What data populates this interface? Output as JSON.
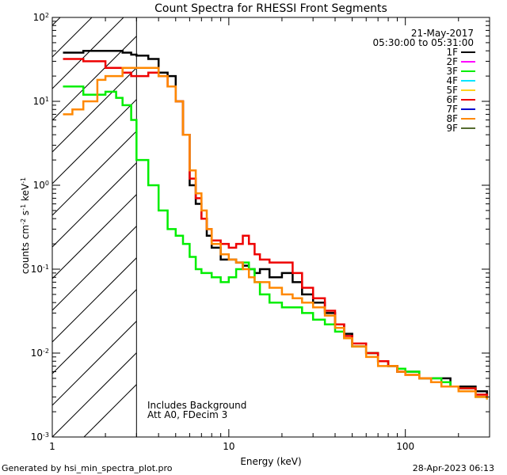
{
  "chart_data": {
    "type": "line",
    "title": "Count Spectra for RHESSI Front Segments",
    "xlabel": "Energy (keV)",
    "ylabel_parts": [
      "counts cm",
      "-2",
      " s",
      "-1",
      " keV",
      "-1"
    ],
    "xscale": "log",
    "yscale": "log",
    "xlim": [
      1,
      300
    ],
    "ylim": [
      0.001,
      100
    ],
    "x_ticks": [
      {
        "value": 1,
        "label": "1"
      },
      {
        "value": 10,
        "label": "10"
      },
      {
        "value": 100,
        "label": "100"
      }
    ],
    "y_ticks": [
      {
        "value": 0.001,
        "base": "10",
        "exp": "-3"
      },
      {
        "value": 0.01,
        "base": "10",
        "exp": "-2"
      },
      {
        "value": 0.1,
        "base": "10",
        "exp": "-1"
      },
      {
        "value": 1,
        "base": "10",
        "exp": "0"
      },
      {
        "value": 10,
        "base": "10",
        "exp": "1"
      },
      {
        "value": 100,
        "base": "10",
        "exp": "2"
      }
    ],
    "date": "21-May-2017",
    "time_range": "05:30:00 to 05:31:00",
    "energy_cutoff": 3,
    "annotations": [
      "Includes Background",
      "Att A0, FDecim 3"
    ],
    "legend": [
      {
        "label": "1F",
        "color": "#000000"
      },
      {
        "label": "2F",
        "color": "#ff00ff"
      },
      {
        "label": "3F",
        "color": "#00ee00"
      },
      {
        "label": "4F",
        "color": "#00e5ff"
      },
      {
        "label": "5F",
        "color": "#ffd21a"
      },
      {
        "label": "6F",
        "color": "#ee0000"
      },
      {
        "label": "7F",
        "color": "#0000cc"
      },
      {
        "label": "8F",
        "color": "#ff8800"
      },
      {
        "label": "9F",
        "color": "#556b2f"
      }
    ],
    "series": [
      {
        "name": "1F",
        "color": "#000000",
        "points": [
          [
            1.15,
            38
          ],
          [
            1.5,
            40
          ],
          [
            2.0,
            40
          ],
          [
            2.5,
            38
          ],
          [
            2.8,
            36
          ],
          [
            3.0,
            35
          ],
          [
            3.5,
            32
          ],
          [
            4.0,
            22
          ],
          [
            4.5,
            20
          ],
          [
            5.0,
            10
          ],
          [
            5.5,
            4
          ],
          [
            6.0,
            1.0
          ],
          [
            6.5,
            0.6
          ],
          [
            7.0,
            0.4
          ],
          [
            7.5,
            0.25
          ],
          [
            8.0,
            0.18
          ],
          [
            9.0,
            0.13
          ],
          [
            10,
            0.13
          ],
          [
            11,
            0.12
          ],
          [
            12,
            0.11
          ],
          [
            13,
            0.1
          ],
          [
            14,
            0.09
          ],
          [
            15,
            0.1
          ],
          [
            17,
            0.08
          ],
          [
            20,
            0.09
          ],
          [
            23,
            0.07
          ],
          [
            26,
            0.05
          ],
          [
            30,
            0.04
          ],
          [
            35,
            0.03
          ],
          [
            40,
            0.022
          ],
          [
            45,
            0.017
          ],
          [
            50,
            0.012
          ],
          [
            60,
            0.01
          ],
          [
            70,
            0.008
          ],
          [
            80,
            0.007
          ],
          [
            90,
            0.006
          ],
          [
            100,
            0.006
          ],
          [
            120,
            0.005
          ],
          [
            140,
            0.005
          ],
          [
            160,
            0.005
          ],
          [
            180,
            0.004
          ],
          [
            200,
            0.004
          ],
          [
            250,
            0.0035
          ],
          [
            290,
            0.003
          ]
        ]
      },
      {
        "name": "3F",
        "color": "#00ee00",
        "points": [
          [
            1.15,
            15
          ],
          [
            1.3,
            15
          ],
          [
            1.5,
            12
          ],
          [
            2.0,
            13
          ],
          [
            2.3,
            11
          ],
          [
            2.5,
            9
          ],
          [
            2.8,
            6
          ],
          [
            3.0,
            2.0
          ],
          [
            3.5,
            1.0
          ],
          [
            4.0,
            0.5
          ],
          [
            4.5,
            0.3
          ],
          [
            5.0,
            0.25
          ],
          [
            5.5,
            0.2
          ],
          [
            6.0,
            0.14
          ],
          [
            6.5,
            0.1
          ],
          [
            7.0,
            0.09
          ],
          [
            8.0,
            0.08
          ],
          [
            9.0,
            0.07
          ],
          [
            10,
            0.08
          ],
          [
            11,
            0.1
          ],
          [
            12,
            0.12
          ],
          [
            13,
            0.1
          ],
          [
            14,
            0.07
          ],
          [
            15,
            0.05
          ],
          [
            17,
            0.04
          ],
          [
            20,
            0.035
          ],
          [
            23,
            0.035
          ],
          [
            26,
            0.03
          ],
          [
            30,
            0.025
          ],
          [
            35,
            0.022
          ],
          [
            40,
            0.018
          ],
          [
            45,
            0.015
          ],
          [
            50,
            0.012
          ],
          [
            60,
            0.01
          ],
          [
            70,
            0.008
          ],
          [
            80,
            0.007
          ],
          [
            90,
            0.0065
          ],
          [
            100,
            0.006
          ],
          [
            120,
            0.005
          ],
          [
            140,
            0.005
          ],
          [
            160,
            0.0045
          ],
          [
            180,
            0.004
          ],
          [
            200,
            0.0038
          ],
          [
            250,
            0.003
          ],
          [
            290,
            0.0028
          ]
        ]
      },
      {
        "name": "6F",
        "color": "#ee0000",
        "points": [
          [
            1.15,
            32
          ],
          [
            1.5,
            30
          ],
          [
            2.0,
            25
          ],
          [
            2.5,
            22
          ],
          [
            2.8,
            20
          ],
          [
            3.0,
            20
          ],
          [
            3.5,
            22
          ],
          [
            4.0,
            20
          ],
          [
            4.5,
            15
          ],
          [
            5.0,
            10
          ],
          [
            5.5,
            4
          ],
          [
            6.0,
            1.2
          ],
          [
            6.5,
            0.7
          ],
          [
            7.0,
            0.4
          ],
          [
            7.5,
            0.3
          ],
          [
            8.0,
            0.22
          ],
          [
            9.0,
            0.2
          ],
          [
            10,
            0.18
          ],
          [
            11,
            0.2
          ],
          [
            12,
            0.25
          ],
          [
            13,
            0.2
          ],
          [
            14,
            0.15
          ],
          [
            15,
            0.13
          ],
          [
            17,
            0.12
          ],
          [
            20,
            0.12
          ],
          [
            23,
            0.09
          ],
          [
            26,
            0.06
          ],
          [
            30,
            0.045
          ],
          [
            35,
            0.032
          ],
          [
            40,
            0.022
          ],
          [
            45,
            0.016
          ],
          [
            50,
            0.013
          ],
          [
            60,
            0.01
          ],
          [
            70,
            0.008
          ],
          [
            80,
            0.007
          ],
          [
            90,
            0.006
          ],
          [
            100,
            0.0055
          ],
          [
            120,
            0.005
          ],
          [
            140,
            0.0045
          ],
          [
            160,
            0.004
          ],
          [
            180,
            0.004
          ],
          [
            200,
            0.0038
          ],
          [
            250,
            0.0032
          ],
          [
            290,
            0.003
          ]
        ]
      },
      {
        "name": "8F",
        "color": "#ff8800",
        "points": [
          [
            1.15,
            7
          ],
          [
            1.3,
            8
          ],
          [
            1.5,
            10
          ],
          [
            1.8,
            18
          ],
          [
            2.0,
            20
          ],
          [
            2.5,
            25
          ],
          [
            3.0,
            25
          ],
          [
            3.5,
            25
          ],
          [
            4.0,
            20
          ],
          [
            4.5,
            15
          ],
          [
            5.0,
            10
          ],
          [
            5.5,
            4
          ],
          [
            6.0,
            1.5
          ],
          [
            6.5,
            0.8
          ],
          [
            7.0,
            0.5
          ],
          [
            7.5,
            0.3
          ],
          [
            8.0,
            0.2
          ],
          [
            9.0,
            0.15
          ],
          [
            10,
            0.13
          ],
          [
            11,
            0.12
          ],
          [
            12,
            0.1
          ],
          [
            13,
            0.08
          ],
          [
            14,
            0.07
          ],
          [
            15,
            0.07
          ],
          [
            17,
            0.06
          ],
          [
            20,
            0.05
          ],
          [
            23,
            0.045
          ],
          [
            26,
            0.04
          ],
          [
            30,
            0.035
          ],
          [
            35,
            0.028
          ],
          [
            40,
            0.02
          ],
          [
            45,
            0.015
          ],
          [
            50,
            0.012
          ],
          [
            60,
            0.009
          ],
          [
            70,
            0.007
          ],
          [
            80,
            0.007
          ],
          [
            90,
            0.006
          ],
          [
            100,
            0.0055
          ],
          [
            120,
            0.005
          ],
          [
            140,
            0.0045
          ],
          [
            160,
            0.004
          ],
          [
            180,
            0.004
          ],
          [
            200,
            0.0035
          ],
          [
            250,
            0.003
          ],
          [
            290,
            0.0028
          ]
        ]
      }
    ]
  },
  "footer": {
    "generated_by": "Generated by hsi_min_spectra_plot.pro",
    "timestamp": "28-Apr-2023 06:13"
  }
}
